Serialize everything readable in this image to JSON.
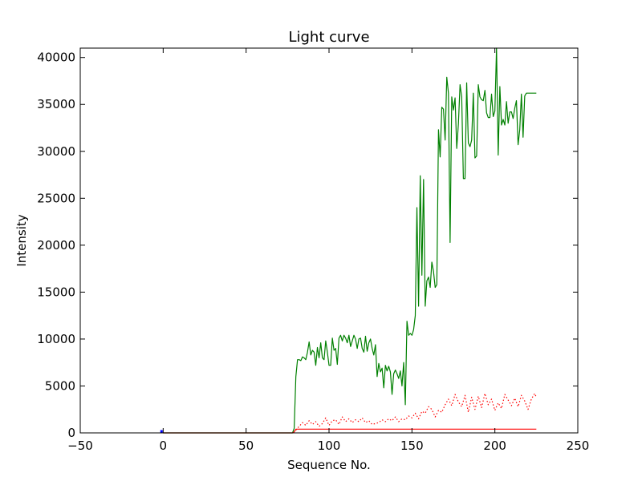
{
  "chart_data": {
    "type": "line",
    "title": "Light curve",
    "xlabel": "Sequence No.",
    "ylabel": "Intensity",
    "xlim": [
      -50,
      250
    ],
    "ylim": [
      0,
      41000
    ],
    "xticks": [
      "−50",
      "0",
      "50",
      "100",
      "150",
      "200",
      "250"
    ],
    "xtick_values": [
      -50,
      0,
      50,
      100,
      150,
      200,
      250
    ],
    "yticks": [
      "0",
      "5000",
      "10000",
      "15000",
      "20000",
      "25000",
      "30000",
      "35000",
      "40000"
    ],
    "ytick_values": [
      0,
      5000,
      10000,
      15000,
      20000,
      25000,
      30000,
      35000,
      40000
    ],
    "grid": false,
    "series": [
      {
        "color": "#008000",
        "style": "solid",
        "x": [
          0,
          78,
          79,
          80,
          81,
          82,
          83,
          84,
          85,
          86,
          87,
          88,
          89,
          90,
          91,
          92,
          93,
          94,
          95,
          96,
          97,
          98,
          99,
          100,
          101,
          102,
          103,
          104,
          105,
          106,
          107,
          108,
          109,
          110,
          111,
          112,
          113,
          114,
          115,
          116,
          117,
          118,
          119,
          120,
          121,
          122,
          123,
          124,
          125,
          126,
          127,
          128,
          129,
          130,
          131,
          132,
          133,
          134,
          135,
          136,
          137,
          138,
          139,
          140,
          141,
          142,
          143,
          144,
          145,
          146,
          147,
          148,
          149,
          150,
          151,
          152,
          153,
          154,
          155,
          156,
          157,
          158,
          159,
          160,
          161,
          162,
          163,
          164,
          165,
          166,
          167,
          168,
          169,
          170,
          171,
          172,
          173,
          174,
          175,
          176,
          177,
          178,
          179,
          180,
          181,
          182,
          183,
          184,
          185,
          186,
          187,
          188,
          189,
          190,
          191,
          192,
          193,
          194,
          195,
          196,
          197,
          198,
          199,
          200,
          201,
          202,
          203,
          204,
          205,
          206,
          207,
          208,
          209,
          210,
          211,
          212,
          213,
          214,
          215,
          216,
          217,
          218,
          219,
          220,
          221,
          222,
          223,
          224,
          225
        ],
        "y": [
          0,
          0,
          500,
          6000,
          7800,
          7800,
          7700,
          8100,
          8000,
          7800,
          8600,
          9700,
          8300,
          8800,
          8600,
          7200,
          9100,
          8000,
          9600,
          8000,
          7800,
          9800,
          8600,
          7200,
          7200,
          10100,
          8800,
          9000,
          7300,
          10100,
          10400,
          9800,
          10400,
          10100,
          9600,
          10400,
          9200,
          9800,
          10400,
          10000,
          9000,
          10000,
          10100,
          9000,
          8600,
          10300,
          8700,
          9600,
          10000,
          9000,
          8300,
          9400,
          6000,
          7400,
          6500,
          6900,
          4800,
          7200,
          6600,
          7100,
          6500,
          4100,
          6300,
          6700,
          6300,
          5800,
          6600,
          5000,
          7500,
          3000,
          11900,
          10400,
          10600,
          10400,
          11000,
          12500,
          24000,
          13500,
          27400,
          16800,
          27000,
          13500,
          16200,
          16600,
          15500,
          18200,
          17200,
          15500,
          15800,
          32300,
          29400,
          34700,
          34500,
          31200,
          37900,
          36200,
          20300,
          35800,
          34400,
          35700,
          30300,
          32900,
          37100,
          35800,
          27100,
          27100,
          37300,
          30900,
          30500,
          31200,
          36200,
          29300,
          29500,
          37100,
          35800,
          35500,
          35400,
          36500,
          34100,
          33600,
          33600,
          36100,
          33700,
          34300,
          41000,
          29600,
          36900,
          32800,
          33400,
          32800,
          35300,
          33000,
          34200,
          34200,
          33500,
          34600,
          35400,
          30700,
          32300,
          36100,
          31500,
          35900,
          36200,
          36200,
          36200,
          36200,
          36200,
          36200,
          36200
        ]
      },
      {
        "color": "#ff0000",
        "style": "dotted",
        "x": [
          80,
          82,
          84,
          86,
          88,
          90,
          92,
          94,
          96,
          98,
          100,
          102,
          104,
          106,
          108,
          110,
          112,
          114,
          116,
          118,
          120,
          122,
          124,
          126,
          128,
          130,
          132,
          134,
          136,
          138,
          140,
          142,
          144,
          146,
          148,
          150,
          152,
          154,
          156,
          158,
          160,
          162,
          164,
          166,
          168,
          170,
          172,
          174,
          176,
          178,
          180,
          182,
          184,
          186,
          188,
          190,
          192,
          194,
          196,
          198,
          200,
          202,
          204,
          206,
          208,
          210,
          212,
          214,
          216,
          218,
          220,
          222,
          224,
          225
        ],
        "y": [
          300,
          700,
          1100,
          800,
          1300,
          900,
          1200,
          700,
          1000,
          1600,
          800,
          1300,
          1400,
          900,
          1700,
          1200,
          1500,
          1100,
          1400,
          1200,
          1600,
          1100,
          1300,
          900,
          1000,
          1100,
          1400,
          1200,
          1500,
          1300,
          1700,
          1200,
          1500,
          1400,
          1800,
          1600,
          2100,
          1500,
          2300,
          2100,
          2800,
          2500,
          1700,
          2400,
          2200,
          3000,
          3600,
          2900,
          4100,
          3300,
          2800,
          4000,
          2200,
          3800,
          2500,
          3900,
          2700,
          4200,
          3000,
          3600,
          2400,
          3200,
          2600,
          4100,
          3500,
          2900,
          3700,
          2800,
          4000,
          3400,
          2500,
          3600,
          4200,
          3800
        ]
      },
      {
        "color": "#ff0000",
        "style": "solid",
        "x": [
          0,
          78,
          79,
          80,
          225
        ],
        "y": [
          0,
          0,
          100,
          400,
          400
        ]
      },
      {
        "color": "#0000ff",
        "style": "bar",
        "x": [
          -1,
          -1
        ],
        "y": [
          0,
          300
        ]
      }
    ]
  }
}
